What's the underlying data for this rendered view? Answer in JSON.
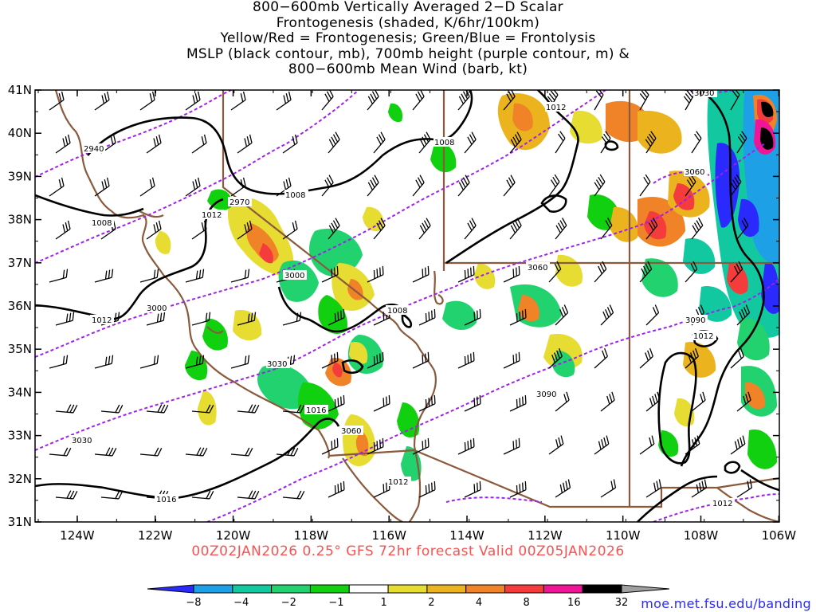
{
  "title_lines": [
    "800−600mb Vertically Averaged 2−D Scalar",
    "Frontogenesis (shaded, K/6hr/100km)",
    "Yellow/Red = Frontogenesis;  Green/Blue = Frontolysis",
    "MSLP (black contour, mb), 700mb height (purple contour, m) &",
    "800−600mb Mean Wind (barb, kt)"
  ],
  "valid_line": "00Z02JAN2026 0.25° GFS 72hr forecast Valid 00Z05JAN2026",
  "credit": "moe.met.fsu.edu/banding",
  "lat_labels": [
    "41N",
    "40N",
    "39N",
    "38N",
    "37N",
    "36N",
    "35N",
    "34N",
    "33N",
    "32N",
    "31N"
  ],
  "lon_labels": [
    "124W",
    "122W",
    "120W",
    "118W",
    "116W",
    "114W",
    "112W",
    "110W",
    "108W",
    "106W"
  ],
  "colorbar": {
    "colors": [
      "#2a2aff",
      "#1ea0e6",
      "#12c8a0",
      "#22d26e",
      "#10d010",
      "#ffffff",
      "#e6dc32",
      "#ebb41e",
      "#f08228",
      "#f53c3c",
      "#f01496",
      "#000000",
      "#a0a0a0"
    ],
    "labels": [
      "−8",
      "−4",
      "−2",
      "−1",
      "1",
      "2",
      "4",
      "8",
      "16",
      "32"
    ]
  },
  "mslp_labels": [
    "1012",
    "1008",
    "1008",
    "1012",
    "1008",
    "1008",
    "1012",
    "1012",
    "1016",
    "1016",
    "1012",
    "1012"
  ],
  "height_labels": [
    "2940",
    "2970",
    "3000",
    "3000",
    "3030",
    "3030",
    "3060",
    "3060",
    "3060",
    "3090",
    "3090",
    "3030"
  ]
}
